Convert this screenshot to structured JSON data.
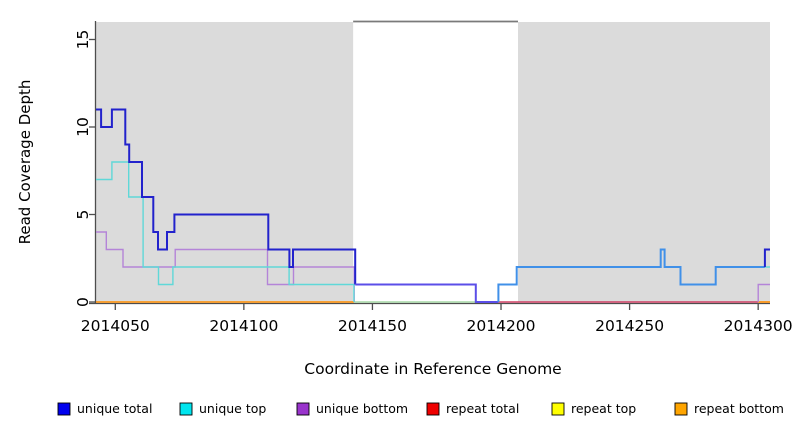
{
  "chart_data": {
    "type": "line",
    "title": "",
    "xlabel": "Coordinate in Reference Genome",
    "ylabel": "Read Coverage Depth",
    "xlim": [
      2014042.5,
      2014304.6
    ],
    "ylim": [
      0,
      16
    ],
    "x_ticks": [
      "2014050",
      "2014100",
      "2014150",
      "2014200",
      "2014250",
      "2014300"
    ],
    "y_ticks": [
      "0",
      "5",
      "10",
      "15"
    ],
    "grid": false,
    "legend_position": "bottom",
    "shaded_regions": [
      {
        "x0": 2014042.5,
        "x1": 2014142.5,
        "color": "#DBDBDB"
      },
      {
        "x0": 2014206.6,
        "x1": 2014304.6,
        "color": "#DBDBDB"
      }
    ],
    "gap_top_line": {
      "x0": 2014142.5,
      "x1": 2014206.6,
      "y": 16,
      "color": "#7A7A7A"
    },
    "series": [
      {
        "name": "unique total",
        "legend_color": "#0000EE",
        "line_color": "#2222CC",
        "line_width": 2,
        "paths": [
          {
            "steps": [
              [
                2014042.5,
                11
              ],
              [
                2014044.5,
                10
              ],
              [
                2014048.7,
                11
              ],
              [
                2014053.9,
                9
              ],
              [
                2014055.4,
                8
              ],
              [
                2014060.4,
                6
              ],
              [
                2014064.8,
                4
              ],
              [
                2014066.6,
                3
              ],
              [
                2014070.1,
                4
              ],
              [
                2014073.0,
                5
              ],
              [
                2014109.5,
                3
              ],
              [
                2014117.7,
                2
              ],
              [
                2014119.1,
                3
              ],
              [
                2014143.3,
                1
              ]
            ],
            "end": 2014143.3
          },
          {
            "color": "#5B4EE8",
            "steps": [
              [
                2014143.3,
                1
              ],
              [
                2014190.2,
                0
              ]
            ],
            "end": 2014199.0
          },
          {
            "color": "#4090E8",
            "steps": [
              [
                2014199.0,
                0
              ],
              [
                2014199.0,
                1
              ],
              [
                2014206.1,
                2
              ],
              [
                2014262.1,
                3
              ],
              [
                2014263.6,
                2
              ],
              [
                2014269.8,
                1
              ],
              [
                2014283.5,
                2
              ]
            ],
            "end": 2014302.6
          },
          {
            "steps": [
              [
                2014302.6,
                2
              ],
              [
                2014302.6,
                3
              ]
            ],
            "end": 2014304.6
          }
        ]
      },
      {
        "name": "unique top",
        "legend_color": "#00E5EE",
        "line_color": "#5FD8D8",
        "line_width": 1.4,
        "paths": [
          {
            "steps": [
              [
                2014042.5,
                7
              ],
              [
                2014048.7,
                8
              ],
              [
                2014055.2,
                6
              ],
              [
                2014060.8,
                2
              ],
              [
                2014066.8,
                1
              ],
              [
                2014072.4,
                2
              ],
              [
                2014117.6,
                1
              ],
              [
                2014142.8,
                0
              ]
            ],
            "end": 2014142.8
          },
          {
            "steps": [
              [
                2014302.6,
                2
              ]
            ],
            "end": 2014304.6
          }
        ]
      },
      {
        "name": "unique bottom",
        "legend_color": "#9933CC",
        "line_color": "#B484D8",
        "line_width": 1.4,
        "paths": [
          {
            "steps": [
              [
                2014042.5,
                4
              ],
              [
                2014046.5,
                3
              ],
              [
                2014053.0,
                2
              ],
              [
                2014073.3,
                3
              ],
              [
                2014109.2,
                1
              ],
              [
                2014119.3,
                2
              ],
              [
                2014142.9,
                0
              ]
            ],
            "end": 2014142.9
          },
          {
            "steps": [
              [
                2014300.0,
                0
              ],
              [
                2014300.0,
                1
              ]
            ],
            "end": 2014304.6
          }
        ]
      },
      {
        "name": "repeat total",
        "legend_color": "#EE0000",
        "line_color": "#D04064",
        "line_width": 1.4,
        "paths": [
          {
            "steps": [
              [
                2014199.0,
                0
              ]
            ],
            "end": 2014300.0
          }
        ]
      },
      {
        "name": "repeat top",
        "legend_color": "#FFFF00",
        "line_color": "#FFFF00",
        "line_width": 1.4,
        "paths": []
      },
      {
        "name": "repeat bottom",
        "legend_color": "#FFA500",
        "line_color": "#FF8C00",
        "line_width": 1.6,
        "paths": [
          {
            "steps": [
              [
                2014042.5,
                0
              ]
            ],
            "end": 2014142.8
          },
          {
            "steps": [
              [
                2014300.0,
                0
              ]
            ],
            "end": 2014304.6
          }
        ]
      },
      {
        "name": "baseline pale green",
        "in_legend": false,
        "line_color": "#A6D8A6",
        "line_width": 1.4,
        "paths": [
          {
            "steps": [
              [
                2014142.8,
                0
              ]
            ],
            "end": 2014199.0
          }
        ]
      }
    ],
    "legend": [
      {
        "label": "unique total",
        "color": "#0000EE"
      },
      {
        "label": "unique top",
        "color": "#00E5EE"
      },
      {
        "label": "unique bottom",
        "color": "#9933CC"
      },
      {
        "label": "repeat total",
        "color": "#EE0000"
      },
      {
        "label": "repeat top",
        "color": "#FFFF00"
      },
      {
        "label": "repeat bottom",
        "color": "#FFA500"
      }
    ]
  }
}
